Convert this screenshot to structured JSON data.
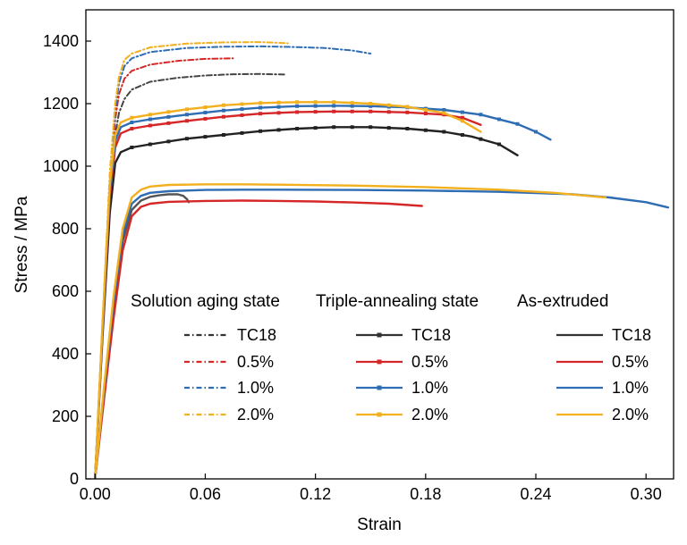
{
  "chart_data": {
    "type": "line",
    "title": "",
    "xlabel": "Strain",
    "ylabel": "Stress / MPa",
    "xlim": [
      -0.005,
      0.315
    ],
    "ylim": [
      0,
      1500
    ],
    "x_ticks": [
      "0.00",
      "0.06",
      "0.12",
      "0.18",
      "0.24",
      "0.30"
    ],
    "y_ticks": [
      "0",
      "200",
      "400",
      "600",
      "800",
      "1000",
      "1200",
      "1400"
    ],
    "grid": false,
    "legend": {
      "placement": "bottom-right",
      "groups": [
        {
          "title": "Solution aging state",
          "style": "dash-dot",
          "entries": [
            "TC18",
            "0.5%",
            "1.0%",
            "2.0%"
          ]
        },
        {
          "title": "Triple-annealing state",
          "style": "solid-square-markers",
          "entries": [
            "TC18",
            "0.5%",
            "1.0%",
            "2.0%"
          ]
        },
        {
          "title": "As-extruded",
          "style": "solid",
          "entries": [
            "TC18",
            "0.5%",
            "1.0%",
            "2.0%"
          ]
        }
      ]
    },
    "colors": {
      "TC18": "#333333",
      "0.5%": "#d62728",
      "1.0%": "#2e6db4",
      "2.0%": "#f2b01e"
    },
    "series": [
      {
        "group": "Solution aging state",
        "name": "TC18",
        "color": "#444444",
        "style": "dashdot",
        "x": [
          0.0,
          0.004,
          0.008,
          0.011,
          0.013,
          0.016,
          0.02,
          0.03,
          0.045,
          0.06,
          0.075,
          0.09,
          0.103
        ],
        "y": [
          0,
          450,
          900,
          1100,
          1170,
          1215,
          1245,
          1270,
          1283,
          1290,
          1294,
          1295,
          1293
        ]
      },
      {
        "group": "Solution aging state",
        "name": "0.5%",
        "color": "#d62728",
        "style": "dashdot",
        "x": [
          0.0,
          0.004,
          0.008,
          0.011,
          0.013,
          0.016,
          0.02,
          0.03,
          0.045,
          0.06,
          0.075
        ],
        "y": [
          0,
          470,
          940,
          1150,
          1230,
          1280,
          1305,
          1325,
          1337,
          1343,
          1345
        ]
      },
      {
        "group": "Solution aging state",
        "name": "1.0%",
        "color": "#2e6db4",
        "style": "dashdot",
        "x": [
          0.0,
          0.004,
          0.008,
          0.011,
          0.013,
          0.016,
          0.02,
          0.03,
          0.05,
          0.07,
          0.09,
          0.11,
          0.125,
          0.14,
          0.15
        ],
        "y": [
          0,
          480,
          960,
          1180,
          1265,
          1320,
          1345,
          1365,
          1378,
          1382,
          1383,
          1381,
          1378,
          1370,
          1360
        ]
      },
      {
        "group": "Solution aging state",
        "name": "2.0%",
        "color": "#f2b01e",
        "style": "dashdot",
        "x": [
          0.0,
          0.004,
          0.008,
          0.011,
          0.013,
          0.016,
          0.02,
          0.03,
          0.05,
          0.07,
          0.09,
          0.105
        ],
        "y": [
          0,
          490,
          980,
          1200,
          1285,
          1340,
          1360,
          1380,
          1392,
          1396,
          1397,
          1393
        ]
      },
      {
        "group": "Triple-annealing state",
        "name": "TC18",
        "color": "#222222",
        "style": "solid-markers",
        "x": [
          0.0,
          0.004,
          0.008,
          0.011,
          0.014,
          0.02,
          0.03,
          0.05,
          0.07,
          0.09,
          0.11,
          0.13,
          0.15,
          0.17,
          0.19,
          0.205,
          0.22,
          0.23
        ],
        "y": [
          0,
          450,
          850,
          1010,
          1045,
          1060,
          1070,
          1088,
          1100,
          1112,
          1120,
          1125,
          1125,
          1120,
          1110,
          1095,
          1070,
          1035
        ]
      },
      {
        "group": "Triple-annealing state",
        "name": "0.5%",
        "color": "#d62728",
        "style": "solid-markers",
        "x": [
          0.0,
          0.004,
          0.008,
          0.011,
          0.014,
          0.02,
          0.03,
          0.05,
          0.07,
          0.09,
          0.11,
          0.13,
          0.15,
          0.17,
          0.19,
          0.2,
          0.21
        ],
        "y": [
          0,
          470,
          900,
          1060,
          1105,
          1120,
          1130,
          1145,
          1158,
          1168,
          1173,
          1175,
          1175,
          1172,
          1165,
          1155,
          1132
        ]
      },
      {
        "group": "Triple-annealing state",
        "name": "1.0%",
        "color": "#2e6db4",
        "style": "solid-markers",
        "x": [
          0.0,
          0.004,
          0.008,
          0.011,
          0.014,
          0.02,
          0.03,
          0.05,
          0.07,
          0.09,
          0.11,
          0.13,
          0.15,
          0.17,
          0.19,
          0.21,
          0.23,
          0.24,
          0.248
        ],
        "y": [
          0,
          480,
          920,
          1080,
          1125,
          1140,
          1150,
          1165,
          1178,
          1187,
          1192,
          1193,
          1192,
          1188,
          1180,
          1165,
          1135,
          1110,
          1085
        ]
      },
      {
        "group": "Triple-annealing state",
        "name": "2.0%",
        "color": "#f2b01e",
        "style": "solid-markers",
        "x": [
          0.0,
          0.004,
          0.008,
          0.011,
          0.014,
          0.02,
          0.03,
          0.05,
          0.07,
          0.09,
          0.11,
          0.13,
          0.15,
          0.17,
          0.19,
          0.2,
          0.21
        ],
        "y": [
          0,
          490,
          940,
          1100,
          1140,
          1155,
          1165,
          1182,
          1195,
          1202,
          1205,
          1205,
          1200,
          1190,
          1170,
          1145,
          1110
        ]
      },
      {
        "group": "As-extruded",
        "name": "TC18",
        "color": "#555555",
        "style": "solid",
        "x": [
          0.0,
          0.005,
          0.01,
          0.015,
          0.02,
          0.025,
          0.03,
          0.035,
          0.04,
          0.045,
          0.048,
          0.05,
          0.051
        ],
        "y": [
          0,
          280,
          540,
          760,
          860,
          890,
          902,
          907,
          910,
          910,
          905,
          895,
          885
        ]
      },
      {
        "group": "As-extruded",
        "name": "0.5%",
        "color": "#d62728",
        "style": "solid",
        "x": [
          0.0,
          0.005,
          0.01,
          0.015,
          0.02,
          0.025,
          0.03,
          0.04,
          0.06,
          0.08,
          0.1,
          0.12,
          0.14,
          0.16,
          0.178
        ],
        "y": [
          0,
          260,
          510,
          730,
          840,
          870,
          880,
          886,
          889,
          890,
          889,
          887,
          884,
          880,
          873
        ]
      },
      {
        "group": "As-extruded",
        "name": "1.0%",
        "color": "#2e6db4",
        "style": "solid",
        "x": [
          0.0,
          0.005,
          0.01,
          0.015,
          0.02,
          0.025,
          0.03,
          0.04,
          0.06,
          0.08,
          0.1,
          0.14,
          0.18,
          0.22,
          0.26,
          0.28,
          0.3,
          0.312
        ],
        "y": [
          0,
          290,
          560,
          780,
          880,
          905,
          915,
          920,
          924,
          925,
          925,
          924,
          922,
          918,
          910,
          900,
          885,
          868
        ]
      },
      {
        "group": "As-extruded",
        "name": "2.0%",
        "color": "#f2b01e",
        "style": "solid",
        "x": [
          0.0,
          0.005,
          0.01,
          0.015,
          0.02,
          0.025,
          0.03,
          0.04,
          0.06,
          0.08,
          0.1,
          0.14,
          0.18,
          0.22,
          0.25,
          0.278
        ],
        "y": [
          0,
          300,
          580,
          800,
          900,
          925,
          935,
          940,
          942,
          942,
          941,
          938,
          933,
          925,
          915,
          900
        ]
      }
    ]
  }
}
